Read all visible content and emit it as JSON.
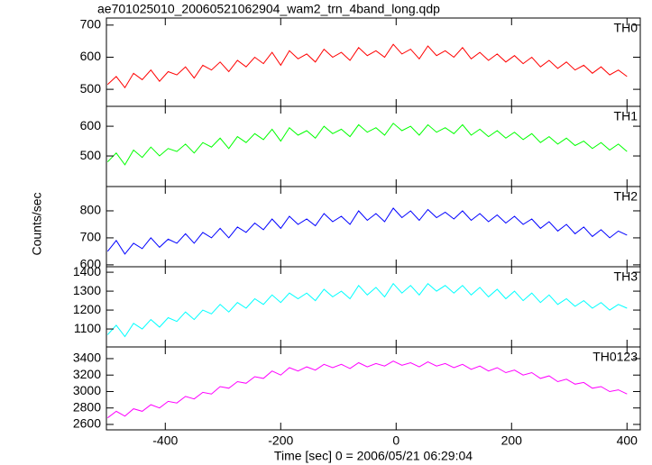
{
  "chart_data": [
    {
      "type": "line",
      "title": "ae701025010_20060521062904_wam2_trn_4band_long.qdp",
      "x": [
        -500,
        -485,
        -470,
        -455,
        -440,
        -425,
        -410,
        -395,
        -380,
        -365,
        -350,
        -335,
        -320,
        -305,
        -290,
        -275,
        -260,
        -245,
        -230,
        -215,
        -200,
        -185,
        -170,
        -155,
        -140,
        -125,
        -110,
        -95,
        -80,
        -65,
        -50,
        -35,
        -20,
        -5,
        10,
        25,
        40,
        55,
        70,
        85,
        100,
        115,
        130,
        145,
        160,
        175,
        190,
        205,
        220,
        235,
        250,
        265,
        280,
        295,
        310,
        325,
        340,
        355,
        370,
        385,
        400
      ],
      "series": [
        {
          "name": "TH0",
          "color": "#ff0000",
          "values": [
            515,
            540,
            505,
            550,
            530,
            560,
            525,
            555,
            545,
            570,
            535,
            575,
            560,
            585,
            555,
            590,
            570,
            600,
            580,
            615,
            575,
            620,
            595,
            610,
            585,
            625,
            600,
            615,
            590,
            630,
            605,
            620,
            600,
            640,
            610,
            625,
            595,
            635,
            605,
            620,
            600,
            630,
            595,
            615,
            590,
            610,
            585,
            605,
            580,
            600,
            570,
            590,
            565,
            585,
            560,
            575,
            550,
            570,
            545,
            560,
            540
          ]
        }
      ],
      "xlim": [
        -502,
        423
      ],
      "xticks": [
        -400,
        -200,
        0,
        200,
        400
      ],
      "ylim": [
        447,
        722
      ],
      "yticks": [
        500,
        600,
        700
      ]
    },
    {
      "type": "line",
      "x": [
        -500,
        -485,
        -470,
        -455,
        -440,
        -425,
        -410,
        -395,
        -380,
        -365,
        -350,
        -335,
        -320,
        -305,
        -290,
        -275,
        -260,
        -245,
        -230,
        -215,
        -200,
        -185,
        -170,
        -155,
        -140,
        -125,
        -110,
        -95,
        -80,
        -65,
        -50,
        -35,
        -20,
        -5,
        10,
        25,
        40,
        55,
        70,
        85,
        100,
        115,
        130,
        145,
        160,
        175,
        190,
        205,
        220,
        235,
        250,
        265,
        280,
        295,
        310,
        325,
        340,
        355,
        370,
        385,
        400
      ],
      "series": [
        {
          "name": "TH1",
          "color": "#00ff00",
          "values": [
            480,
            510,
            470,
            520,
            495,
            530,
            500,
            525,
            515,
            540,
            510,
            545,
            530,
            560,
            525,
            565,
            545,
            575,
            555,
            590,
            550,
            595,
            570,
            585,
            560,
            600,
            575,
            590,
            565,
            605,
            580,
            595,
            570,
            610,
            585,
            600,
            570,
            605,
            580,
            595,
            575,
            605,
            570,
            590,
            565,
            585,
            560,
            580,
            555,
            575,
            545,
            565,
            540,
            560,
            535,
            550,
            525,
            545,
            520,
            540,
            515
          ]
        }
      ],
      "xlim": [
        -502,
        423
      ],
      "xticks": [
        -400,
        -200,
        0,
        200,
        400
      ],
      "ylim": [
        397,
        667
      ],
      "yticks": [
        500,
        600
      ]
    },
    {
      "type": "line",
      "ylabel": "Counts/sec",
      "x": [
        -500,
        -485,
        -470,
        -455,
        -440,
        -425,
        -410,
        -395,
        -380,
        -365,
        -350,
        -335,
        -320,
        -305,
        -290,
        -275,
        -260,
        -245,
        -230,
        -215,
        -200,
        -185,
        -170,
        -155,
        -140,
        -125,
        -110,
        -95,
        -80,
        -65,
        -50,
        -35,
        -20,
        -5,
        10,
        25,
        40,
        55,
        70,
        85,
        100,
        115,
        130,
        145,
        160,
        175,
        190,
        205,
        220,
        235,
        250,
        265,
        280,
        295,
        310,
        325,
        340,
        355,
        370,
        385,
        400
      ],
      "series": [
        {
          "name": "TH2",
          "color": "#0000ff",
          "values": [
            650,
            690,
            640,
            680,
            660,
            700,
            665,
            695,
            680,
            715,
            680,
            720,
            700,
            735,
            700,
            740,
            720,
            755,
            730,
            770,
            735,
            780,
            750,
            770,
            745,
            790,
            760,
            780,
            750,
            800,
            765,
            790,
            760,
            810,
            775,
            800,
            765,
            805,
            775,
            795,
            770,
            800,
            765,
            790,
            760,
            785,
            755,
            780,
            750,
            770,
            735,
            760,
            725,
            750,
            715,
            740,
            705,
            730,
            700,
            725,
            710
          ]
        }
      ],
      "xlim": [
        -502,
        423
      ],
      "xticks": [
        -400,
        -200,
        0,
        200,
        400
      ],
      "ylim": [
        593,
        890
      ],
      "yticks": [
        600,
        700,
        800
      ]
    },
    {
      "type": "line",
      "x": [
        -500,
        -485,
        -470,
        -455,
        -440,
        -425,
        -410,
        -395,
        -380,
        -365,
        -350,
        -335,
        -320,
        -305,
        -290,
        -275,
        -260,
        -245,
        -230,
        -215,
        -200,
        -185,
        -170,
        -155,
        -140,
        -125,
        -110,
        -95,
        -80,
        -65,
        -50,
        -35,
        -20,
        -5,
        10,
        25,
        40,
        55,
        70,
        85,
        100,
        115,
        130,
        145,
        160,
        175,
        190,
        205,
        220,
        235,
        250,
        265,
        280,
        295,
        310,
        325,
        340,
        355,
        370,
        385,
        400
      ],
      "series": [
        {
          "name": "TH3",
          "color": "#00ffff",
          "values": [
            1070,
            1120,
            1060,
            1130,
            1100,
            1150,
            1110,
            1160,
            1140,
            1190,
            1150,
            1200,
            1180,
            1230,
            1190,
            1240,
            1210,
            1260,
            1230,
            1280,
            1240,
            1290,
            1260,
            1290,
            1250,
            1310,
            1270,
            1300,
            1260,
            1330,
            1280,
            1320,
            1270,
            1340,
            1290,
            1330,
            1280,
            1340,
            1300,
            1330,
            1290,
            1330,
            1280,
            1320,
            1270,
            1310,
            1260,
            1300,
            1250,
            1290,
            1240,
            1280,
            1230,
            1260,
            1220,
            1250,
            1210,
            1240,
            1200,
            1230,
            1210
          ]
        }
      ],
      "xlim": [
        -502,
        423
      ],
      "xticks": [
        -400,
        -200,
        0,
        200,
        400
      ],
      "ylim": [
        1005,
        1429
      ],
      "yticks": [
        1100,
        1200,
        1300,
        1400
      ]
    },
    {
      "type": "line",
      "xlabel": "Time [sec] 0 = 2006/05/21 06:29:04",
      "x": [
        -500,
        -485,
        -470,
        -455,
        -440,
        -425,
        -410,
        -395,
        -380,
        -365,
        -350,
        -335,
        -320,
        -305,
        -290,
        -275,
        -260,
        -245,
        -230,
        -215,
        -200,
        -185,
        -170,
        -155,
        -140,
        -125,
        -110,
        -95,
        -80,
        -65,
        -50,
        -35,
        -20,
        -5,
        10,
        25,
        40,
        55,
        70,
        85,
        100,
        115,
        130,
        145,
        160,
        175,
        190,
        205,
        220,
        235,
        250,
        265,
        280,
        295,
        310,
        325,
        340,
        355,
        370,
        385,
        400
      ],
      "series": [
        {
          "name": "TH0123",
          "color": "#ff00ff",
          "values": [
            2680,
            2760,
            2700,
            2790,
            2760,
            2840,
            2800,
            2880,
            2860,
            2940,
            2910,
            2990,
            2970,
            3060,
            3040,
            3120,
            3100,
            3180,
            3160,
            3250,
            3200,
            3290,
            3250,
            3300,
            3260,
            3330,
            3290,
            3330,
            3280,
            3350,
            3300,
            3340,
            3310,
            3370,
            3320,
            3350,
            3300,
            3360,
            3310,
            3340,
            3290,
            3330,
            3270,
            3310,
            3250,
            3290,
            3230,
            3260,
            3200,
            3230,
            3160,
            3190,
            3120,
            3150,
            3090,
            3110,
            3040,
            3060,
            3000,
            3020,
            2970
          ]
        }
      ],
      "xlim": [
        -502,
        423
      ],
      "xticks": [
        -400,
        -200,
        0,
        200,
        400
      ],
      "ylim": [
        2534,
        3542
      ],
      "yticks": [
        2600,
        2800,
        3000,
        3200,
        3400
      ]
    }
  ]
}
